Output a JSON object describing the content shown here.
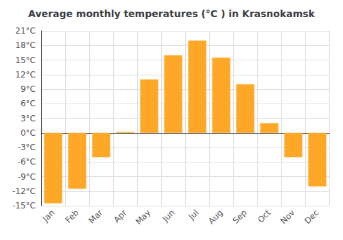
{
  "chart_data": {
    "type": "bar",
    "title": "Average monthly temperatures (°C ) in Krasnokamsk",
    "categories": [
      "Jan",
      "Feb",
      "Mar",
      "Apr",
      "May",
      "Jun",
      "Jul",
      "Aug",
      "Sep",
      "Oct",
      "Nov",
      "Dec"
    ],
    "values": [
      -14.5,
      -11.5,
      -5.0,
      0.2,
      11.0,
      16.0,
      19.0,
      15.5,
      10.0,
      2.0,
      -5.0,
      -11.0
    ],
    "color": "#FFA726",
    "ylim": [
      -15,
      21
    ],
    "yticks": [
      {
        "value": -15,
        "label": "-15°C"
      },
      {
        "value": -12,
        "label": "-12°C"
      },
      {
        "value": -9,
        "label": "-9°C"
      },
      {
        "value": -6,
        "label": "-6°C"
      },
      {
        "value": -3,
        "label": "-3°C"
      },
      {
        "value": 0,
        "label": "0°C"
      },
      {
        "value": 3,
        "label": "3°C"
      },
      {
        "value": 6,
        "label": "6°C"
      },
      {
        "value": 9,
        "label": "9°C"
      },
      {
        "value": 12,
        "label": "12°C"
      },
      {
        "value": 15,
        "label": "15°C"
      },
      {
        "value": 18,
        "label": "18°C"
      },
      {
        "value": 21,
        "label": "21°C"
      }
    ],
    "grid": true
  }
}
